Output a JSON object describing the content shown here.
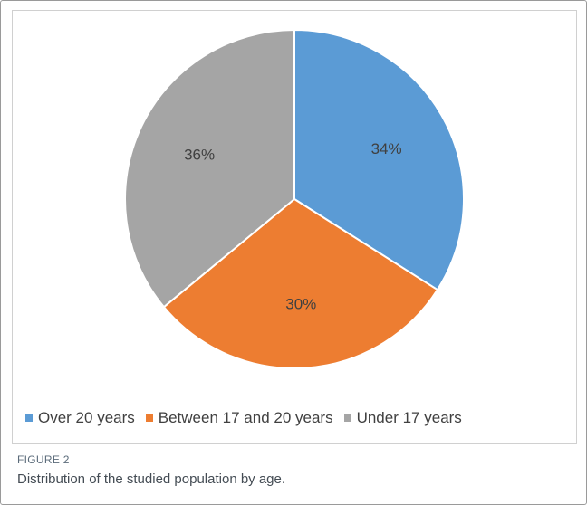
{
  "chart_data": {
    "type": "pie",
    "categories": [
      "Over 20 years",
      "Between 17 and 20 years",
      "Under 17 years"
    ],
    "values": [
      34,
      30,
      36
    ],
    "data_labels": [
      "34%",
      "30%",
      "36%"
    ],
    "colors": [
      "#5b9bd5",
      "#ed7d31",
      "#a5a5a5"
    ],
    "start_angle_deg": 0,
    "direction": "clockwise",
    "legend_position": "bottom"
  },
  "figure": {
    "label": "FIGURE 2",
    "caption": "Distribution of the studied population by age."
  }
}
